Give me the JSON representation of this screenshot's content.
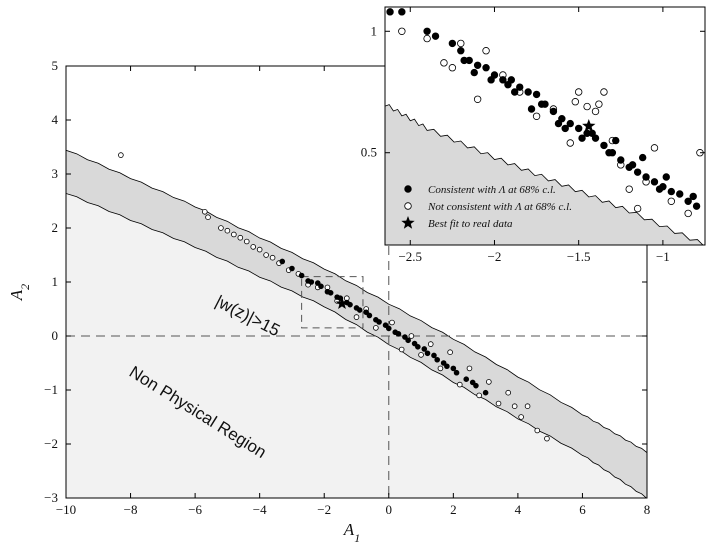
{
  "chart_data": [
    {
      "type": "scatter",
      "panel": "main",
      "xlabel": "A",
      "xlabel_sub": "1",
      "ylabel": "A",
      "ylabel_sub": "2",
      "xlim": [
        -10,
        8
      ],
      "ylim": [
        -3,
        5
      ],
      "xticks": [
        -10,
        -8,
        -6,
        -4,
        -2,
        0,
        2,
        4,
        6,
        8
      ],
      "yticks": [
        -3,
        -2,
        -1,
        0,
        1,
        2,
        3,
        4,
        5
      ],
      "xtick_labels": [
        "−10",
        "−8",
        "−6",
        "−4",
        "−2",
        "0",
        "2",
        "4",
        "6",
        "8"
      ],
      "ytick_labels": [
        "−3",
        "−2",
        "−1",
        "0",
        "1",
        "2",
        "3",
        "4",
        "5"
      ],
      "grid": false,
      "reference_lines": {
        "x": 0,
        "y": 0
      },
      "zoom_box": {
        "x": [
          -2.7,
          -0.8
        ],
        "y": [
          0.15,
          1.1
        ]
      },
      "regions": [
        {
          "label": "Non Physical Region",
          "boundary": {
            "x": [
              -10,
              -6,
              -2,
              2,
              6,
              8
            ],
            "y": [
              2.65,
              1.65,
              0.55,
              -0.85,
              -2.2,
              -3.0
            ]
          }
        },
        {
          "label": "|w(z)|>15",
          "boundary": {
            "x": [
              -10,
              -6,
              -2,
              2,
              6,
              8
            ],
            "y": [
              3.45,
              2.4,
              1.25,
              -0.05,
              -1.45,
              -2.15
            ]
          }
        }
      ],
      "series": [
        {
          "name": "Consistent with Λ at 68% c.l.",
          "marker": "filled-circle",
          "x": [
            -3.3,
            -3.0,
            -2.7,
            -2.4,
            -2.1,
            -1.8,
            -1.5,
            -1.2,
            -0.9,
            -0.6,
            -0.3,
            0.0,
            0.3,
            0.6,
            0.9,
            1.2,
            1.5,
            1.8,
            2.1,
            2.4,
            2.7,
            3.0,
            -2.2,
            -1.6,
            -1.0,
            -0.4,
            0.2,
            0.8,
            1.4,
            2.0,
            2.6,
            -2.5,
            -1.9,
            -1.3,
            -0.7,
            -0.1,
            0.5,
            1.1,
            1.7
          ],
          "y": [
            1.38,
            1.25,
            1.12,
            1.0,
            0.92,
            0.8,
            0.7,
            0.58,
            0.48,
            0.38,
            0.26,
            0.14,
            0.04,
            -0.08,
            -0.2,
            -0.32,
            -0.44,
            -0.56,
            -0.68,
            -0.8,
            -0.92,
            -1.05,
            0.98,
            0.72,
            0.52,
            0.3,
            0.07,
            -0.14,
            -0.36,
            -0.6,
            -0.86,
            1.02,
            0.82,
            0.62,
            0.44,
            0.2,
            -0.02,
            -0.24,
            -0.5
          ]
        },
        {
          "name": "Not consistent with Λ at 68% c.l.",
          "marker": "open-circle",
          "x": [
            -8.3,
            -5.7,
            -5.6,
            -5.2,
            -5.0,
            -4.8,
            -4.6,
            -4.4,
            -4.2,
            -4.0,
            -3.8,
            -3.6,
            -3.4,
            -3.1,
            -2.8,
            -2.5,
            -2.2,
            -1.9,
            -1.6,
            -1.3,
            -1.0,
            -0.7,
            -0.4,
            0.1,
            0.4,
            0.7,
            1.0,
            1.3,
            1.6,
            1.9,
            2.2,
            2.5,
            2.8,
            3.1,
            3.4,
            3.7,
            3.9,
            4.1,
            4.3,
            4.6,
            4.9
          ],
          "y": [
            3.35,
            2.3,
            2.2,
            2.0,
            1.95,
            1.88,
            1.82,
            1.75,
            1.65,
            1.6,
            1.5,
            1.45,
            1.35,
            1.22,
            1.15,
            0.95,
            0.9,
            0.9,
            0.65,
            0.7,
            0.35,
            0.5,
            0.15,
            0.25,
            -0.25,
            0.0,
            -0.35,
            -0.15,
            -0.6,
            -0.3,
            -0.9,
            -0.6,
            -1.1,
            -0.85,
            -1.25,
            -1.05,
            -1.3,
            -1.5,
            -1.3,
            -1.75,
            -1.9
          ]
        },
        {
          "name": "Best fit to real data",
          "marker": "star",
          "x": [
            -1.45
          ],
          "y": [
            0.6
          ]
        }
      ]
    },
    {
      "type": "scatter",
      "panel": "inset",
      "xlim": [
        -2.65,
        -0.75
      ],
      "ylim": [
        0.12,
        1.1
      ],
      "xticks": [
        -2.5,
        -2,
        -1.5,
        -1
      ],
      "yticks": [
        0.5,
        1
      ],
      "xtick_labels": [
        "−2.5",
        "−2",
        "−1.5",
        "−1"
      ],
      "ytick_labels": [
        "0.5",
        "1"
      ],
      "region_boundary": {
        "x": [
          -2.65,
          -2.4,
          -2.0,
          -1.6,
          -1.2,
          -0.75
        ],
        "y": [
          0.7,
          0.6,
          0.48,
          0.37,
          0.26,
          0.12
        ]
      },
      "series": [
        {
          "name": "Consistent with Λ at 68% c.l.",
          "marker": "filled-circle",
          "x": [
            -2.62,
            -2.55,
            -2.4,
            -2.35,
            -2.25,
            -2.2,
            -2.15,
            -2.1,
            -2.05,
            -2.0,
            -1.95,
            -1.9,
            -1.85,
            -1.8,
            -1.75,
            -1.7,
            -1.65,
            -1.6,
            -1.55,
            -1.5,
            -1.45,
            -1.4,
            -1.35,
            -1.3,
            -1.25,
            -1.2,
            -1.15,
            -1.1,
            -1.05,
            -1.0,
            -0.95,
            -0.9,
            -0.85,
            -0.8,
            -2.18,
            -2.02,
            -1.88,
            -1.72,
            -1.58,
            -1.42,
            -1.28,
            -1.12,
            -0.98,
            -0.82,
            -2.12,
            -1.92,
            -1.78,
            -1.62,
            -1.48,
            -1.32,
            -1.18,
            -1.02
          ],
          "y": [
            1.08,
            1.08,
            1.0,
            0.98,
            0.95,
            0.92,
            0.88,
            0.86,
            0.85,
            0.82,
            0.8,
            0.8,
            0.77,
            0.75,
            0.74,
            0.7,
            0.67,
            0.64,
            0.62,
            0.6,
            0.58,
            0.56,
            0.53,
            0.5,
            0.47,
            0.44,
            0.42,
            0.4,
            0.38,
            0.36,
            0.34,
            0.33,
            0.3,
            0.28,
            0.88,
            0.8,
            0.75,
            0.7,
            0.6,
            0.58,
            0.55,
            0.48,
            0.4,
            0.32,
            0.83,
            0.78,
            0.68,
            0.62,
            0.56,
            0.5,
            0.45,
            0.35
          ]
        },
        {
          "name": "Not consistent with Λ at 68% c.l.",
          "marker": "open-circle",
          "x": [
            -2.55,
            -2.4,
            -2.3,
            -2.2,
            -2.1,
            -2.05,
            -1.95,
            -1.85,
            -1.75,
            -1.65,
            -1.55,
            -1.5,
            -1.45,
            -1.4,
            -1.35,
            -1.3,
            -1.25,
            -1.2,
            -1.1,
            -1.05,
            -0.95,
            -0.85,
            -0.78,
            -1.38,
            -1.52,
            -2.25,
            -1.15
          ],
          "y": [
            1.0,
            0.97,
            0.87,
            0.95,
            0.72,
            0.92,
            0.82,
            0.75,
            0.65,
            0.68,
            0.54,
            0.75,
            0.69,
            0.67,
            0.75,
            0.55,
            0.45,
            0.35,
            0.38,
            0.52,
            0.3,
            0.25,
            0.5,
            0.7,
            0.71,
            0.85,
            0.27
          ]
        },
        {
          "name": "Best fit to real data",
          "marker": "star",
          "x": [
            -1.44
          ],
          "y": [
            0.61
          ]
        }
      ],
      "legend": {
        "placement": "bottom-left",
        "entries": [
          {
            "marker": "filled-circle",
            "text": "Consistent with Λ at 68% c.l."
          },
          {
            "marker": "open-circle",
            "text": "Not consistent with Λ at 68% c.l."
          },
          {
            "marker": "star",
            "text": "Best fit to real data"
          }
        ]
      }
    }
  ],
  "annotations": {
    "band_label": "|w(z)|>15",
    "region_label": "Non Physical Region"
  },
  "colors": {
    "nonphysical_fill": "#f2f2f2",
    "band_fill": "#d9d9d9",
    "marker": "#000000",
    "dashed": "#555555"
  }
}
